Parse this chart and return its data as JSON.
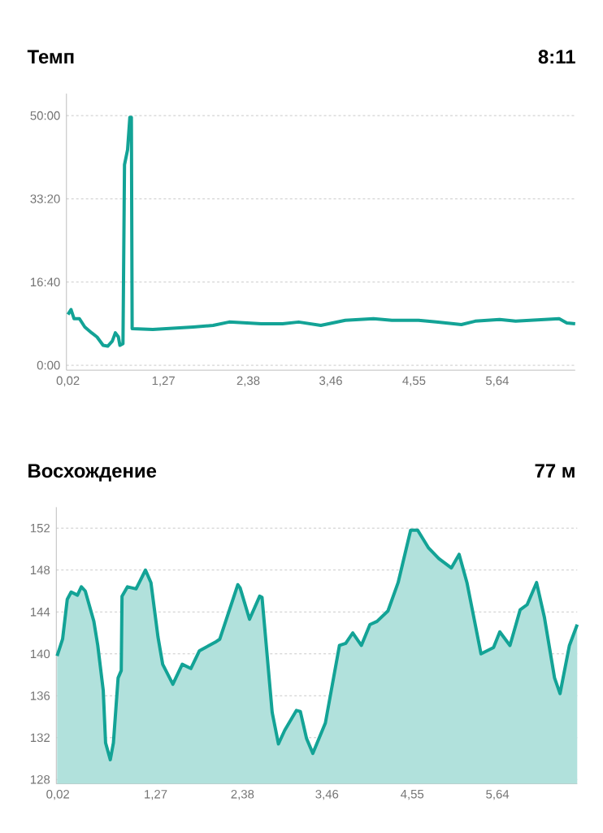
{
  "chart_data": [
    {
      "type": "line",
      "title": "Темп",
      "annotations": [
        "8:11"
      ],
      "color": "#13a396",
      "grid": "y",
      "x": [
        0.02,
        0.06,
        0.1,
        0.17,
        0.24,
        0.33,
        0.4,
        0.48,
        0.54,
        0.6,
        0.64,
        0.68,
        0.7,
        0.74,
        0.76,
        0.8,
        0.83,
        0.85,
        0.86,
        1.13,
        1.66,
        1.92,
        2.13,
        2.55,
        2.83,
        3.04,
        3.33,
        3.65,
        4.02,
        4.26,
        4.61,
        4.84,
        5.17,
        5.35,
        5.67,
        5.88,
        6.45,
        6.55,
        6.66
      ],
      "values": [
        610,
        670,
        560,
        560,
        460,
        390,
        340,
        240,
        230,
        290,
        390,
        340,
        240,
        260,
        2410,
        2590,
        2980,
        2980,
        440,
        430,
        460,
        480,
        520,
        500,
        500,
        520,
        480,
        540,
        560,
        540,
        540,
        520,
        490,
        530,
        550,
        530,
        560,
        510,
        500
      ],
      "xlim": [
        0,
        6.66
      ],
      "ylim": [
        -59,
        3264
      ],
      "xticks": [
        {
          "value": 0.02,
          "label": "0,02"
        },
        {
          "value": 1.27,
          "label": "1,27"
        },
        {
          "value": 2.38,
          "label": "2,38"
        },
        {
          "value": 3.46,
          "label": "3,46"
        },
        {
          "value": 4.55,
          "label": "4,55"
        },
        {
          "value": 5.64,
          "label": "5,64"
        }
      ],
      "yticks": [
        {
          "value": 0,
          "label": "0:00"
        },
        {
          "value": 1000,
          "label": "16:40"
        },
        {
          "value": 2000,
          "label": "33:20"
        },
        {
          "value": 3000,
          "label": "50:00"
        }
      ]
    },
    {
      "type": "area",
      "title": "Восхождение",
      "annotations": [
        "77 м"
      ],
      "color": "#13a396",
      "grid": "y",
      "x": [
        0.01,
        0.08,
        0.14,
        0.19,
        0.27,
        0.32,
        0.37,
        0.48,
        0.53,
        0.6,
        0.63,
        0.69,
        0.73,
        0.79,
        0.83,
        0.84,
        0.91,
        1.02,
        1.14,
        1.21,
        1.3,
        1.36,
        1.49,
        1.61,
        1.72,
        1.83,
        2.03,
        2.09,
        2.32,
        2.35,
        2.47,
        2.6,
        2.63,
        2.76,
        2.84,
        2.92,
        3.07,
        3.12,
        3.2,
        3.28,
        3.44,
        3.62,
        3.7,
        3.79,
        3.9,
        4.01,
        4.1,
        4.24,
        4.37,
        4.53,
        4.62,
        4.76,
        4.89,
        5.05,
        5.15,
        5.25,
        5.43,
        5.59,
        5.67,
        5.8,
        5.93,
        6.02,
        6.14,
        6.24,
        6.37,
        6.44,
        6.56,
        6.66
      ],
      "values": [
        139.8,
        141.4,
        145.2,
        145.9,
        145.6,
        146.4,
        146.0,
        143.1,
        140.8,
        136.5,
        131.5,
        129.9,
        131.5,
        137.7,
        138.4,
        145.5,
        146.4,
        146.2,
        148.0,
        146.8,
        141.6,
        139.0,
        137.1,
        139.0,
        138.6,
        140.3,
        141.1,
        141.4,
        146.6,
        146.3,
        143.3,
        145.5,
        145.4,
        134.4,
        131.4,
        132.7,
        134.6,
        134.5,
        131.9,
        130.5,
        133.4,
        140.8,
        141.0,
        142.0,
        140.8,
        142.8,
        143.1,
        144.1,
        146.8,
        151.8,
        151.8,
        150.1,
        149.1,
        148.2,
        149.5,
        146.8,
        140.0,
        140.6,
        142.1,
        140.8,
        144.2,
        144.7,
        146.8,
        143.5,
        137.7,
        136.2,
        140.8,
        142.8
      ],
      "xlim": [
        0,
        6.66
      ],
      "ylim": [
        127.6,
        154
      ],
      "xticks": [
        {
          "value": 0.02,
          "label": "0,02"
        },
        {
          "value": 1.27,
          "label": "1,27"
        },
        {
          "value": 2.38,
          "label": "2,38"
        },
        {
          "value": 3.46,
          "label": "3,46"
        },
        {
          "value": 4.55,
          "label": "4,55"
        },
        {
          "value": 5.64,
          "label": "5,64"
        }
      ],
      "yticks": [
        128,
        132,
        136,
        140,
        144,
        148,
        152
      ]
    }
  ]
}
